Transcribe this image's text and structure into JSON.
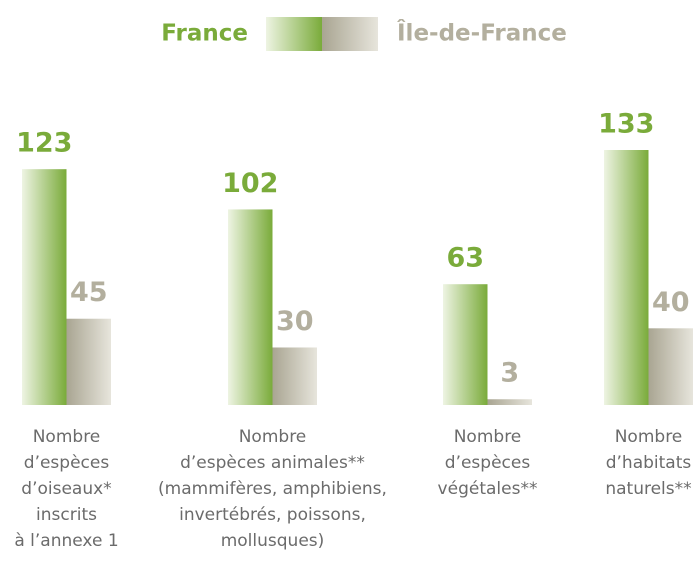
{
  "chart_data": {
    "type": "bar",
    "categories": [
      [
        "Nombre",
        "d’espèces",
        "d’oiseaux*",
        "inscrits",
        "à l’annexe 1"
      ],
      [
        "Nombre",
        "d’espèces animales**",
        "(mammifères, amphibiens,",
        "invertébrés, poissons,",
        "mollusques)"
      ],
      [
        "Nombre",
        "d’espèces",
        "végétales**"
      ],
      [
        "Nombre",
        "d’habitats",
        "naturels**"
      ]
    ],
    "series": [
      {
        "name": "France",
        "color": "#7aab3a",
        "values": [
          123,
          102,
          63,
          133
        ]
      },
      {
        "name": "Île-de-France",
        "color": "#b3af9e",
        "values": [
          45,
          30,
          3,
          40
        ]
      }
    ]
  }
}
